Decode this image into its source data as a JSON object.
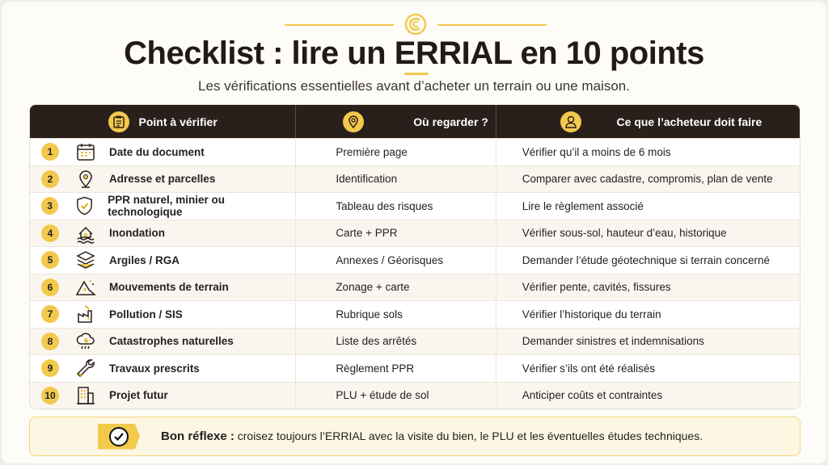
{
  "title": "Checklist : lire un ERRIAL en 10 points",
  "subtitle": "Les vérifications essentielles avant d’acheter un terrain ou une maison.",
  "colors": {
    "accent": "#f2c94c",
    "header_bg": "#2a201b"
  },
  "table": {
    "headers": [
      {
        "label": "Point à vérifier",
        "icon": "clipboard-icon"
      },
      {
        "label": "Où regarder ?",
        "icon": "map-pin-icon"
      },
      {
        "label": "Ce que l’acheteur doit faire",
        "icon": "user-icon"
      }
    ],
    "rows": [
      {
        "num": "1",
        "icon": "calendar-icon",
        "point": "Date du document",
        "where": "Première page",
        "action": "Vérifier qu’il a moins de 6 mois"
      },
      {
        "num": "2",
        "icon": "map-pin-icon",
        "point": "Adresse et parcelles",
        "where": "Identification",
        "action": "Comparer avec cadastre, compromis, plan de vente"
      },
      {
        "num": "3",
        "icon": "shield-check-icon",
        "point": "PPR naturel, minier ou technologique",
        "where": "Tableau des risques",
        "action": "Lire le règlement associé"
      },
      {
        "num": "4",
        "icon": "flood-house-icon",
        "point": "Inondation",
        "where": "Carte + PPR",
        "action": "Vérifier sous-sol, hauteur d’eau, historique"
      },
      {
        "num": "5",
        "icon": "layers-icon",
        "point": "Argiles / RGA",
        "where": "Annexes / Géorisques",
        "action": "Demander l’étude géotechnique si terrain concerné"
      },
      {
        "num": "6",
        "icon": "landslide-icon",
        "point": "Mouvements de terrain",
        "where": "Zonage + carte",
        "action": "Vérifier pente, cavités, fissures"
      },
      {
        "num": "7",
        "icon": "factory-icon",
        "point": "Pollution / SIS",
        "where": "Rubrique sols",
        "action": "Vérifier l’historique du terrain"
      },
      {
        "num": "8",
        "icon": "storm-cloud-icon",
        "point": "Catastrophes naturelles",
        "where": "Liste des arrêtés",
        "action": "Demander sinistres et indemnisations"
      },
      {
        "num": "9",
        "icon": "wrench-icon",
        "point": "Travaux prescrits",
        "where": "Règlement PPR",
        "action": "Vérifier s’ils ont été réalisés"
      },
      {
        "num": "10",
        "icon": "building-icon",
        "point": "Projet futur",
        "where": "PLU + étude de sol",
        "action": "Anticiper coûts et contraintes"
      }
    ]
  },
  "footer": {
    "bold": "Bon réflexe :",
    "text": " croisez toujours l’ERRIAL avec la visite du bien, le PLU et les éventuelles études techniques.",
    "icon": "check-circle-icon"
  }
}
